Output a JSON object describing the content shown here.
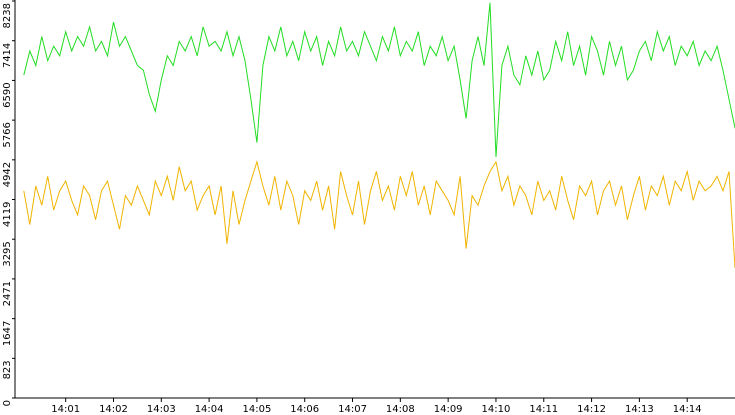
{
  "chart_data": {
    "type": "line",
    "x": [
      0.125,
      0.25,
      0.375,
      0.5,
      0.625,
      0.75,
      0.875,
      1.0,
      1.125,
      1.25,
      1.375,
      1.5,
      1.625,
      1.75,
      1.875,
      2.0,
      2.125,
      2.25,
      2.375,
      2.5,
      2.625,
      2.75,
      2.875,
      3.0,
      3.125,
      3.25,
      3.375,
      3.5,
      3.625,
      3.75,
      3.875,
      4.0,
      4.125,
      4.25,
      4.375,
      4.5,
      4.625,
      4.75,
      4.875,
      5.0,
      5.125,
      5.25,
      5.375,
      5.5,
      5.625,
      5.75,
      5.875,
      6.0,
      6.125,
      6.25,
      6.375,
      6.5,
      6.625,
      6.75,
      6.875,
      7.0,
      7.125,
      7.25,
      7.375,
      7.5,
      7.625,
      7.75,
      7.875,
      8.0,
      8.125,
      8.25,
      8.375,
      8.5,
      8.625,
      8.75,
      8.875,
      9.0,
      9.125,
      9.25,
      9.375,
      9.5,
      9.625,
      9.75,
      9.875,
      10.0,
      10.125,
      10.25,
      10.375,
      10.5,
      10.625,
      10.75,
      10.875,
      11.0,
      11.125,
      11.25,
      11.375,
      11.5,
      11.625,
      11.75,
      11.875,
      12.0,
      12.125,
      12.25,
      12.375,
      12.5,
      12.625,
      12.75,
      12.875,
      13.0,
      13.125,
      13.25,
      13.375,
      13.5,
      13.625,
      13.75,
      13.875,
      14.0,
      14.125,
      14.25,
      14.375,
      14.5,
      14.625,
      14.75,
      14.875,
      15.0
    ],
    "series": [
      {
        "color": "#22dd22",
        "values": [
          6700,
          7200,
          6900,
          7500,
          7000,
          7300,
          7100,
          7600,
          7200,
          7500,
          7300,
          7700,
          7200,
          7400,
          7100,
          7800,
          7300,
          7500,
          7200,
          6900,
          6800,
          6300,
          5950,
          6600,
          7100,
          6900,
          7400,
          7200,
          7500,
          7100,
          7700,
          7300,
          7400,
          7200,
          7600,
          7100,
          7500,
          7000,
          6200,
          5300,
          6900,
          7500,
          7200,
          7700,
          7100,
          7400,
          7000,
          7600,
          7200,
          7500,
          6900,
          7400,
          7100,
          7700,
          7200,
          7400,
          7100,
          7600,
          7300,
          7000,
          7500,
          7200,
          7700,
          7100,
          7400,
          7200,
          7600,
          6900,
          7300,
          7100,
          7500,
          7000,
          7300,
          6600,
          5800,
          7000,
          7500,
          6900,
          8200,
          5000,
          6900,
          7300,
          6700,
          6500,
          7100,
          6700,
          7200,
          6600,
          6800,
          7400,
          7000,
          7600,
          6900,
          7300,
          6700,
          7500,
          7200,
          6700,
          7400,
          6900,
          7300,
          6600,
          6800,
          7200,
          7400,
          7000,
          7600,
          7200,
          7500,
          6900,
          7300,
          7100,
          7400,
          6900,
          7200,
          7000,
          7300,
          6800,
          6200,
          5600
        ]
      },
      {
        "color": "#f0b400",
        "values": [
          4300,
          3600,
          4400,
          4000,
          4600,
          3900,
          4300,
          4500,
          4100,
          3800,
          4400,
          4200,
          3700,
          4300,
          4500,
          4000,
          3500,
          4200,
          4000,
          4400,
          4100,
          3800,
          4500,
          4200,
          4600,
          4100,
          4800,
          4300,
          4500,
          3900,
          4200,
          4400,
          3800,
          4400,
          3200,
          4300,
          3600,
          4100,
          4500,
          4900,
          4400,
          4000,
          4600,
          3900,
          4500,
          4200,
          3600,
          4300,
          4100,
          4500,
          3900,
          4400,
          3500,
          4700,
          4200,
          3800,
          4500,
          3600,
          4300,
          4700,
          4100,
          4400,
          3900,
          4600,
          4200,
          4700,
          4000,
          4400,
          3800,
          4500,
          4300,
          4100,
          3800,
          4600,
          3100,
          4200,
          4000,
          4400,
          4700,
          4900,
          4300,
          4600,
          4000,
          4400,
          4200,
          3800,
          4500,
          4100,
          4300,
          3900,
          4600,
          4100,
          3700,
          4400,
          4200,
          4500,
          3800,
          4300,
          4500,
          4000,
          4400,
          3700,
          4200,
          4600,
          3900,
          4400,
          4200,
          4600,
          4000,
          4500,
          4300,
          4700,
          4100,
          4500,
          4300,
          4400,
          4600,
          4300,
          4700,
          2700
        ]
      }
    ],
    "xlim": [
      -0.06,
      15
    ],
    "xticks": [
      {
        "value": 1,
        "label": "14:01"
      },
      {
        "value": 2,
        "label": "14:02"
      },
      {
        "value": 3,
        "label": "14:03"
      },
      {
        "value": 4,
        "label": "14:04"
      },
      {
        "value": 5,
        "label": "14:05"
      },
      {
        "value": 6,
        "label": "14:06"
      },
      {
        "value": 7,
        "label": "14:07"
      },
      {
        "value": 8,
        "label": "14:08"
      },
      {
        "value": 9,
        "label": "14:09"
      },
      {
        "value": 10,
        "label": "14:10"
      },
      {
        "value": 11,
        "label": "14:11"
      },
      {
        "value": 12,
        "label": "14:12"
      },
      {
        "value": 13,
        "label": "14:13"
      },
      {
        "value": 14,
        "label": "14:14"
      }
    ],
    "ylim": [
      0,
      8238
    ],
    "yticks": [
      0,
      823,
      1647,
      2471,
      3295,
      4119,
      4942,
      5766,
      6590,
      7414,
      8238
    ]
  }
}
